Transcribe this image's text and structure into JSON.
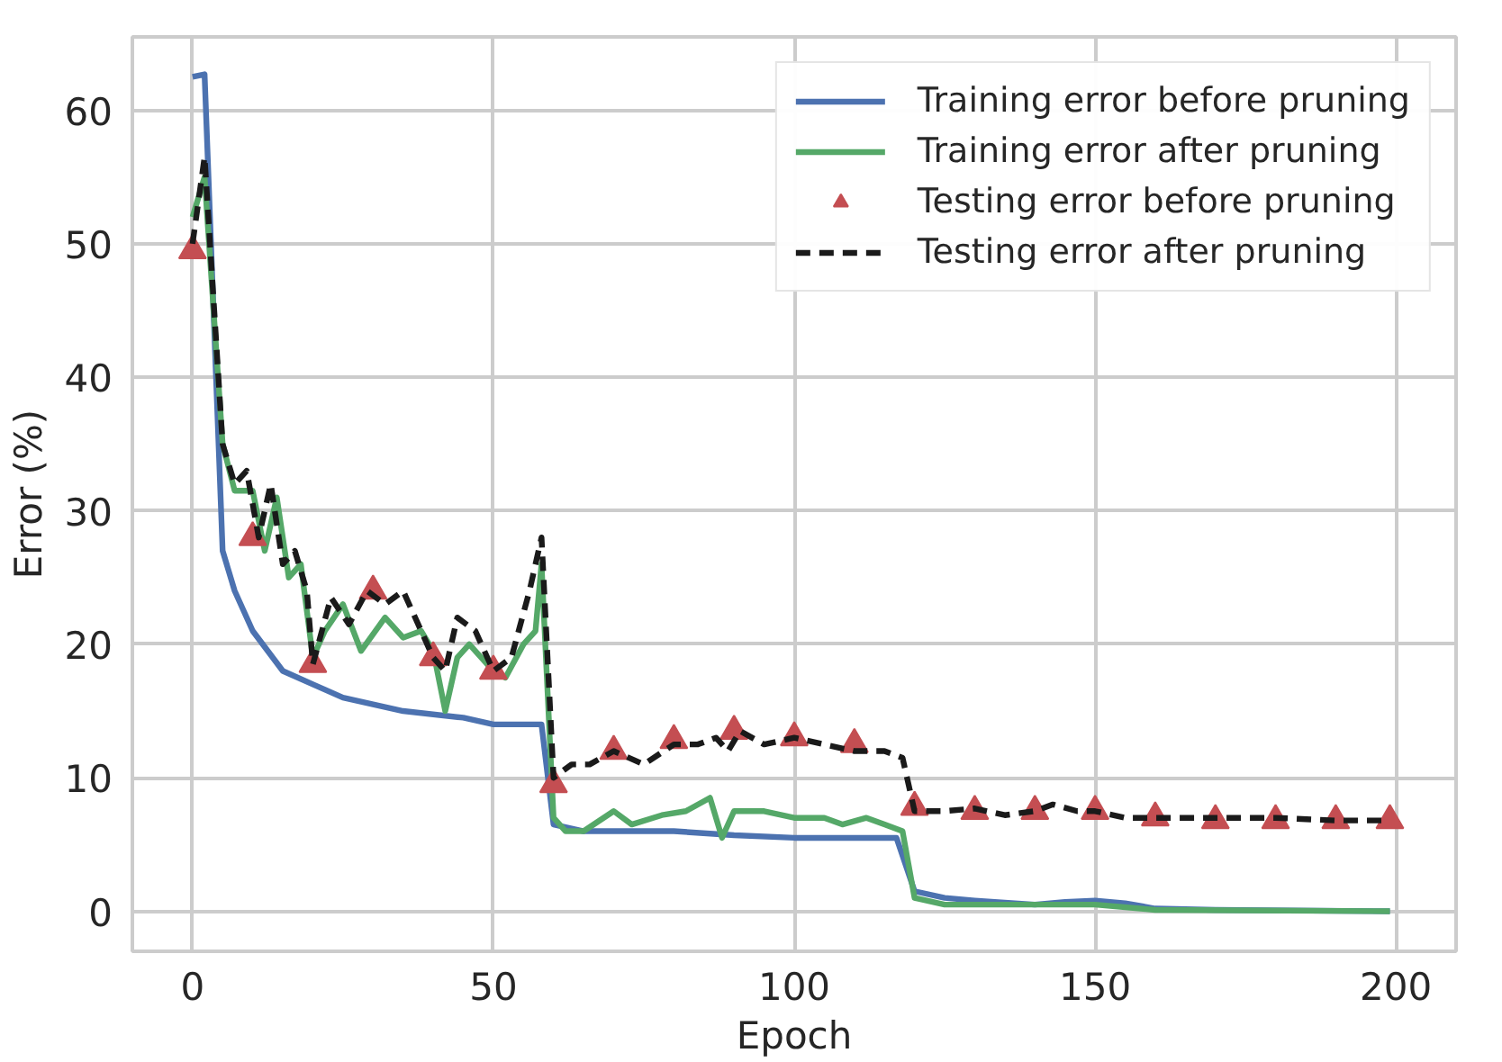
{
  "chart_data": {
    "type": "line",
    "xlabel": "Epoch",
    "ylabel": "Error (%)",
    "xlim": [
      -10,
      210
    ],
    "ylim": [
      -3,
      65.5
    ],
    "xticks": [
      0,
      50,
      100,
      150,
      200
    ],
    "yticks": [
      0,
      10,
      20,
      30,
      40,
      50,
      60
    ],
    "grid": true,
    "legend": "top right",
    "series": [
      {
        "name": "Training error before pruning",
        "color": "#4c72b0",
        "line_style": "solid",
        "x": [
          0,
          2,
          5,
          7,
          10,
          15,
          20,
          25,
          30,
          35,
          45,
          50,
          58,
          60,
          65,
          80,
          90,
          100,
          110,
          117,
          120,
          125,
          130,
          140,
          145,
          150,
          155,
          160,
          170,
          199
        ],
        "values": [
          62.5,
          62.7,
          27,
          24,
          21,
          18,
          17,
          16,
          15.5,
          15,
          14.5,
          14,
          14,
          6.5,
          6,
          6,
          5.7,
          5.5,
          5.5,
          5.5,
          1.5,
          1,
          0.8,
          0.5,
          0.7,
          0.8,
          0.6,
          0.2,
          0.1,
          0
        ]
      },
      {
        "name": "Training error after pruning",
        "color": "#55a868",
        "line_style": "solid",
        "x": [
          0,
          2,
          5,
          7,
          10,
          12,
          14,
          16,
          18,
          20,
          22,
          25,
          28,
          32,
          35,
          38,
          40,
          42,
          44,
          46,
          50,
          52,
          55,
          57,
          58,
          60,
          62,
          65,
          70,
          73,
          78,
          82,
          86,
          88,
          90,
          95,
          100,
          105,
          108,
          112,
          115,
          118,
          120,
          125,
          140,
          150,
          160,
          199
        ],
        "values": [
          52,
          55,
          35,
          31.5,
          31.5,
          27,
          31,
          25,
          26,
          19,
          21,
          23,
          19.5,
          22,
          20.5,
          21,
          19.5,
          15,
          19,
          20,
          18,
          17.5,
          20,
          21,
          26,
          7,
          6,
          6,
          7.5,
          6.5,
          7.2,
          7.5,
          8.5,
          5.5,
          7.5,
          7.5,
          7,
          7,
          6.5,
          7,
          6.5,
          6,
          1,
          0.5,
          0.5,
          0.5,
          0.1,
          0
        ]
      },
      {
        "name": "Testing error before pruning",
        "color": "#c44e52",
        "type": "scatter",
        "marker": "triangle",
        "x": [
          0,
          10,
          20,
          30,
          40,
          50,
          60,
          70,
          80,
          90,
          100,
          110,
          120,
          130,
          140,
          150,
          160,
          170,
          180,
          190,
          199
        ],
        "values": [
          49.5,
          28,
          18.5,
          24,
          19,
          18,
          9.5,
          12,
          12.8,
          13.5,
          13,
          12.5,
          7.8,
          7.5,
          7.5,
          7.5,
          7,
          6.8,
          6.8,
          6.8,
          6.8
        ]
      },
      {
        "name": "Testing error after pruning",
        "color": "#1a1a1a",
        "line_style": "dashed",
        "x": [
          0,
          2,
          5,
          7,
          9,
          11,
          13,
          15,
          17,
          19,
          20,
          23,
          26,
          29,
          32,
          35,
          38,
          40,
          42,
          44,
          47,
          50,
          53,
          56,
          58,
          60,
          63,
          66,
          70,
          75,
          80,
          84,
          87,
          89,
          91,
          95,
          100,
          105,
          110,
          115,
          118,
          120,
          125,
          130,
          135,
          140,
          143,
          147,
          150,
          155,
          160,
          170,
          180,
          190,
          199
        ],
        "values": [
          50,
          56.5,
          35,
          32,
          33,
          28,
          32,
          26,
          27,
          24,
          18.5,
          23.5,
          21.5,
          24,
          23,
          24,
          21,
          19,
          18,
          22,
          21,
          18,
          19,
          24,
          28,
          10,
          11,
          11,
          12,
          11,
          12.5,
          12.5,
          13,
          12,
          13.5,
          12.5,
          13,
          12.5,
          12,
          12,
          11.5,
          7.5,
          7.5,
          7.7,
          7.2,
          7.5,
          8,
          7.5,
          7.5,
          7,
          7,
          7,
          7,
          6.8,
          6.8
        ]
      }
    ]
  }
}
